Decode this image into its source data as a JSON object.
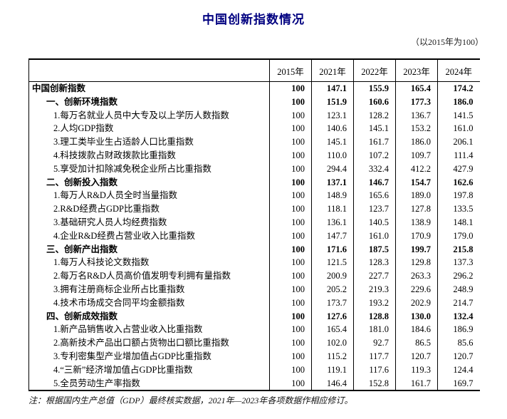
{
  "title": "中国创新指数情况",
  "subtitle": "（以2015年为100）",
  "table": {
    "year_headers": [
      "2015年",
      "2021年",
      "2022年",
      "2023年",
      "2024年"
    ],
    "rows": [
      {
        "label": "中国创新指数",
        "bold": true,
        "indent": 0,
        "values": [
          "100",
          "147.1",
          "155.9",
          "165.4",
          "174.2"
        ]
      },
      {
        "label": "一、创新环境指数",
        "bold": true,
        "indent": 1,
        "values": [
          "100",
          "151.9",
          "160.6",
          "177.3",
          "186.0"
        ]
      },
      {
        "label": "1.每万名就业人员中大专及以上学历人数指数",
        "bold": false,
        "indent": 2,
        "values": [
          "100",
          "123.1",
          "128.2",
          "136.7",
          "141.5"
        ]
      },
      {
        "label": "2.人均GDP指数",
        "bold": false,
        "indent": 2,
        "values": [
          "100",
          "140.6",
          "145.1",
          "153.2",
          "161.0"
        ]
      },
      {
        "label": "3.理工类毕业生占适龄人口比重指数",
        "bold": false,
        "indent": 2,
        "values": [
          "100",
          "145.1",
          "161.7",
          "186.0",
          "206.1"
        ]
      },
      {
        "label": "4.科技拨款占财政拨款比重指数",
        "bold": false,
        "indent": 2,
        "values": [
          "100",
          "110.0",
          "107.2",
          "109.7",
          "111.4"
        ]
      },
      {
        "label": "5.享受加计扣除减免税企业所占比重指数",
        "bold": false,
        "indent": 2,
        "values": [
          "100",
          "294.4",
          "332.4",
          "412.2",
          "427.9"
        ]
      },
      {
        "label": "二、创新投入指数",
        "bold": true,
        "indent": 1,
        "values": [
          "100",
          "137.1",
          "146.7",
          "154.7",
          "162.6"
        ]
      },
      {
        "label": "1.每万人R&D人员全时当量指数",
        "bold": false,
        "indent": 2,
        "values": [
          "100",
          "148.9",
          "165.6",
          "189.0",
          "197.8"
        ]
      },
      {
        "label": "2.R&D经费占GDP比重指数",
        "bold": false,
        "indent": 2,
        "values": [
          "100",
          "118.1",
          "123.7",
          "127.8",
          "133.5"
        ]
      },
      {
        "label": "3.基础研究人员人均经费指数",
        "bold": false,
        "indent": 2,
        "values": [
          "100",
          "136.1",
          "140.5",
          "138.9",
          "148.1"
        ]
      },
      {
        "label": "4.企业R&D经费占营业收入比重指数",
        "bold": false,
        "indent": 2,
        "values": [
          "100",
          "147.7",
          "161.0",
          "170.9",
          "179.0"
        ]
      },
      {
        "label": "三、创新产出指数",
        "bold": true,
        "indent": 1,
        "values": [
          "100",
          "171.6",
          "187.5",
          "199.7",
          "215.8"
        ]
      },
      {
        "label": "1.每万人科技论文数指数",
        "bold": false,
        "indent": 2,
        "values": [
          "100",
          "121.5",
          "128.3",
          "129.8",
          "137.3"
        ]
      },
      {
        "label": "2.每万名R&D人员高价值发明专利拥有量指数",
        "bold": false,
        "indent": 2,
        "values": [
          "100",
          "200.9",
          "227.7",
          "263.3",
          "296.2"
        ]
      },
      {
        "label": "3.拥有注册商标企业所占比重指数",
        "bold": false,
        "indent": 2,
        "values": [
          "100",
          "205.2",
          "219.3",
          "229.6",
          "248.9"
        ]
      },
      {
        "label": "4.技术市场成交合同平均金额指数",
        "bold": false,
        "indent": 2,
        "values": [
          "100",
          "173.7",
          "193.2",
          "202.9",
          "214.7"
        ]
      },
      {
        "label": "四、创新成效指数",
        "bold": true,
        "indent": 1,
        "values": [
          "100",
          "127.6",
          "128.8",
          "130.0",
          "132.4"
        ]
      },
      {
        "label": "1.新产品销售收入占营业收入比重指数",
        "bold": false,
        "indent": 2,
        "values": [
          "100",
          "165.4",
          "181.0",
          "184.6",
          "186.9"
        ]
      },
      {
        "label": "2.高新技术产品出口额占货物出口额比重指数",
        "bold": false,
        "indent": 2,
        "values": [
          "100",
          "102.0",
          "92.7",
          "86.5",
          "85.6"
        ]
      },
      {
        "label": "3.专利密集型产业增加值占GDP比重指数",
        "bold": false,
        "indent": 2,
        "values": [
          "100",
          "115.2",
          "117.7",
          "120.7",
          "120.7"
        ]
      },
      {
        "label": "4.“三新”经济增加值占GDP比重指数",
        "bold": false,
        "indent": 2,
        "values": [
          "100",
          "119.1",
          "117.6",
          "119.3",
          "124.4"
        ]
      },
      {
        "label": "5.全员劳动生产率指数",
        "bold": false,
        "indent": 2,
        "values": [
          "100",
          "146.4",
          "152.8",
          "161.7",
          "169.7"
        ]
      }
    ]
  },
  "footnote": "注：根据国内生产总值（GDP）最终核实数据，2021年—2023年各项数据作相应修订。",
  "colors": {
    "title": "#000080",
    "text": "#000000",
    "border": "#000000"
  }
}
